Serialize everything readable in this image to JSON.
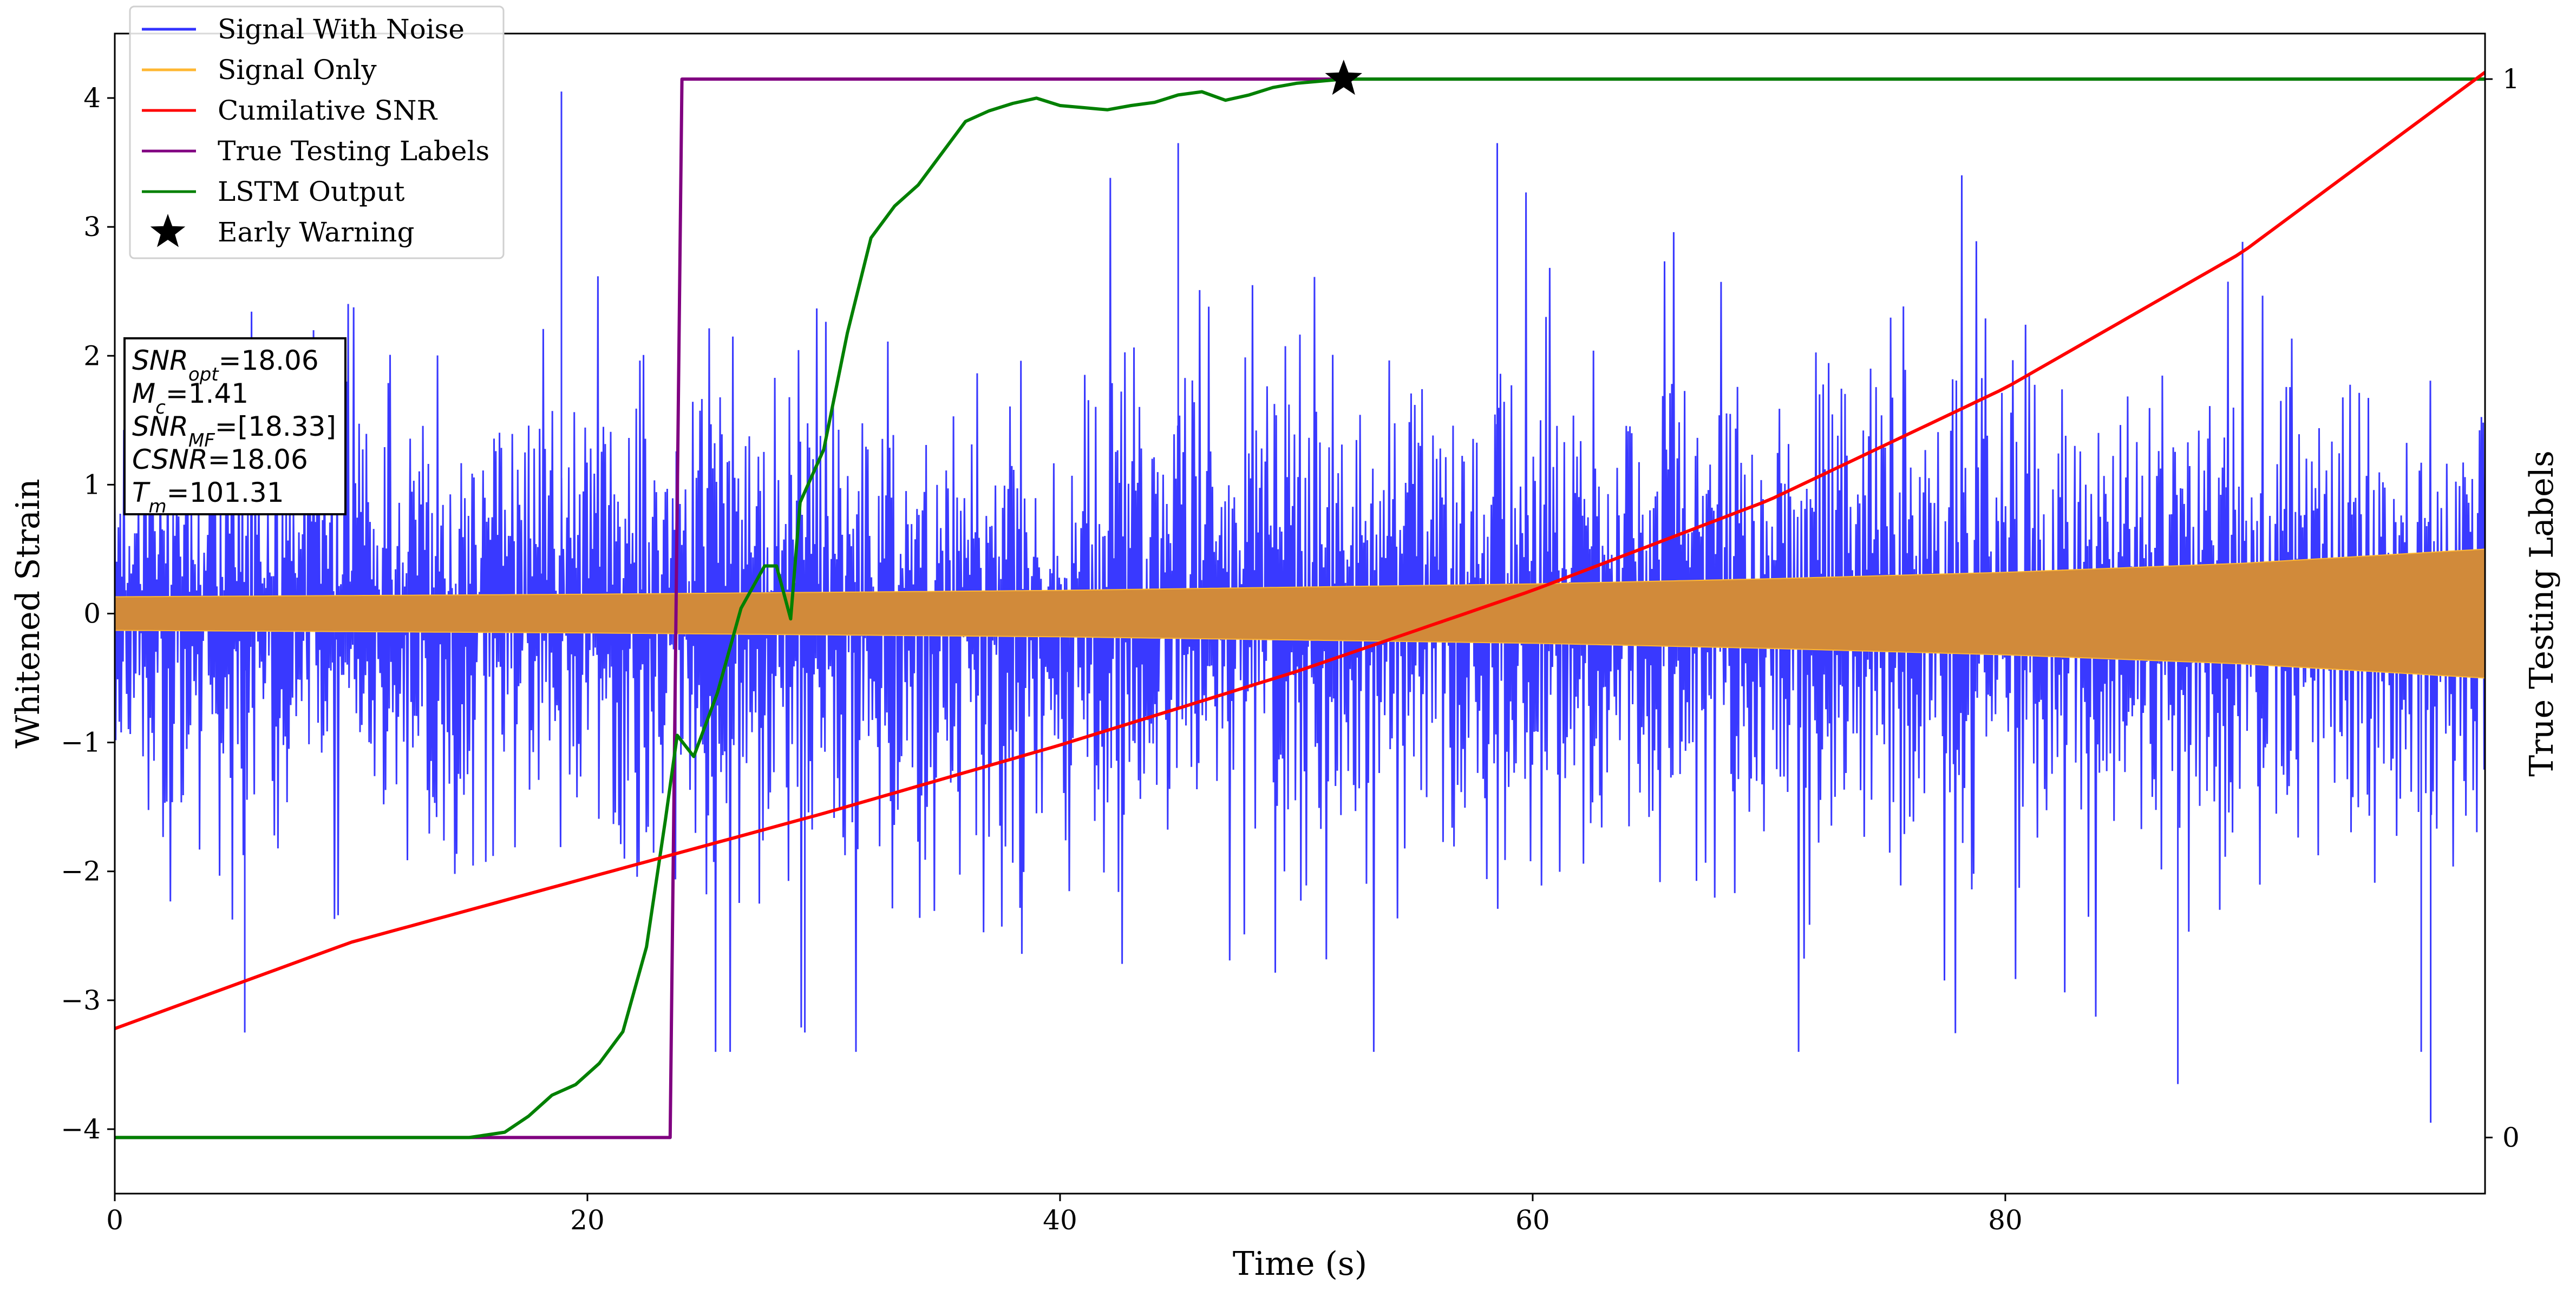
{
  "chart_data": {
    "type": "line",
    "title": "",
    "xlabel": "Time (s)",
    "ylabel": "Whitened Strain",
    "ylabel_right": "True Testing Labels",
    "xlim": [
      0,
      100.3
    ],
    "ylim": [
      -4.5,
      4.5
    ],
    "ylim_right": [
      -0.053,
      1.043
    ],
    "x_ticks": [
      0,
      20,
      40,
      60,
      80
    ],
    "x_tick_labels": [
      "0",
      "20",
      "40",
      "60",
      "80"
    ],
    "y_ticks": [
      -4,
      -3,
      -2,
      -1,
      0,
      1,
      2,
      3,
      4
    ],
    "y_tick_labels": [
      "−4",
      "−3",
      "−2",
      "−1",
      "0",
      "1",
      "2",
      "3",
      "4"
    ],
    "y_right_ticks": [
      0,
      1
    ],
    "y_right_tick_labels": [
      "0",
      "1"
    ],
    "grid": false,
    "legend_position": "top-left",
    "legend": [
      {
        "label": "Signal With Noise",
        "color": "#3333ff",
        "marker": "line"
      },
      {
        "label": "Signal Only",
        "color": "#ffb732",
        "marker": "line"
      },
      {
        "label": "Cumilative SNR",
        "color": "#ff0000",
        "marker": "line"
      },
      {
        "label": "True Testing Labels",
        "color": "#800080",
        "marker": "line"
      },
      {
        "label": "LSTM Output",
        "color": "#008000",
        "marker": "line"
      },
      {
        "label": "Early Warning",
        "color": "#000000",
        "marker": "star"
      }
    ],
    "series": [
      {
        "name": "Signal With Noise",
        "axis": "left",
        "color": "#3333ff",
        "kind": "noise_band",
        "description_of_extent": "dense oscillation, typical range about ±1.5 with spikes to about ±4",
        "typical_amplitude": 1.5,
        "peak_extremes": [
          {
            "x": 18.9,
            "y": 4.05
          },
          {
            "x": 45.0,
            "y": 3.65
          },
          {
            "x": 58.5,
            "y": 3.65
          },
          {
            "x": 87.3,
            "y": -3.65
          },
          {
            "x": 98.0,
            "y": -3.95
          },
          {
            "x": 5.5,
            "y": -3.25
          },
          {
            "x": 29.2,
            "y": -3.25
          },
          {
            "x": 97.6,
            "y": -3.4
          }
        ]
      },
      {
        "name": "Signal Only",
        "axis": "left",
        "color": "#ffb732",
        "kind": "chirp_envelope",
        "envelope": {
          "x": [
            0,
            20,
            40,
            60,
            70,
            80,
            90,
            100.3
          ],
          "y": [
            0.13,
            0.15,
            0.18,
            0.23,
            0.27,
            0.32,
            0.39,
            0.5
          ]
        }
      },
      {
        "name": "Cumilative SNR",
        "axis": "left",
        "color": "#ff0000",
        "x": [
          0,
          10,
          20,
          30,
          40,
          50,
          60,
          70,
          80,
          90,
          100.3
        ],
        "y": [
          -3.22,
          -2.55,
          -2.05,
          -1.55,
          -1.02,
          -0.45,
          0.18,
          0.88,
          1.75,
          2.8,
          4.2
        ]
      },
      {
        "name": "True Testing Labels",
        "axis": "right",
        "color": "#800080",
        "x": [
          0,
          23.5,
          24.0,
          100.3
        ],
        "y": [
          0,
          0,
          1,
          1
        ]
      },
      {
        "name": "LSTM Output",
        "axis": "right",
        "color": "#008000",
        "x": [
          0,
          15.0,
          16.5,
          17.5,
          18.5,
          19.5,
          20.5,
          21.5,
          22.5,
          23.3,
          23.8,
          24.5,
          25.5,
          26.5,
          27.5,
          28.0,
          28.6,
          29.0,
          30.0,
          31.0,
          32.0,
          33.0,
          33.5,
          34.0,
          35.0,
          36.0,
          37.0,
          38.0,
          39.0,
          40.0,
          41.0,
          42.0,
          43.0,
          44.0,
          45.0,
          46.0,
          47.0,
          48.0,
          49.0,
          50.0,
          51.0,
          52.0,
          54.0,
          60.0,
          70.0,
          80.0,
          90.0,
          100.3
        ],
        "y": [
          0,
          0,
          0.005,
          0.02,
          0.04,
          0.05,
          0.07,
          0.1,
          0.18,
          0.3,
          0.38,
          0.36,
          0.42,
          0.5,
          0.54,
          0.54,
          0.49,
          0.6,
          0.65,
          0.76,
          0.85,
          0.88,
          0.89,
          0.9,
          0.93,
          0.96,
          0.97,
          0.977,
          0.982,
          0.975,
          0.973,
          0.971,
          0.975,
          0.978,
          0.985,
          0.988,
          0.98,
          0.985,
          0.992,
          0.996,
          0.998,
          1.0,
          1.0,
          1.0,
          1.0,
          1.0,
          1.0,
          1.0
        ]
      }
    ],
    "markers": [
      {
        "name": "Early Warning",
        "axis": "right",
        "x": 52.0,
        "y": 1.0,
        "shape": "star",
        "color": "#000000"
      }
    ],
    "annotation_box": {
      "position": "left, upper-middle",
      "lines": [
        {
          "main": "SNR",
          "sub": "opt",
          "value": "=18.06"
        },
        {
          "main": "M",
          "sub": "c",
          "value": "=1.41"
        },
        {
          "main": "SNR",
          "sub": "MF",
          "value": "=[18.33]"
        },
        {
          "main": "CSNR",
          "sub": "",
          "value": "=18.06"
        },
        {
          "main": "T",
          "sub": "m",
          "value": "=101.31"
        }
      ]
    }
  }
}
